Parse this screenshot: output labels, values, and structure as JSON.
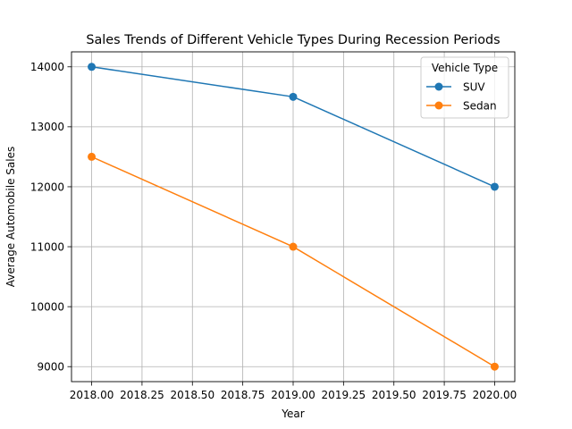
{
  "chart_data": {
    "type": "line",
    "title": "Sales Trends of Different Vehicle Types During Recession Periods",
    "xlabel": "Year",
    "ylabel": "Average Automobile Sales",
    "x": [
      2018,
      2019,
      2020
    ],
    "xlim": [
      2017.9,
      2020.1
    ],
    "ylim": [
      8750,
      14250
    ],
    "grid": true,
    "xticks": [
      2018.0,
      2018.25,
      2018.5,
      2018.75,
      2019.0,
      2019.25,
      2019.5,
      2019.75,
      2020.0
    ],
    "xtick_labels": [
      "2018.00",
      "2018.25",
      "2018.50",
      "2018.75",
      "2019.00",
      "2019.25",
      "2019.50",
      "2019.75",
      "2020.00"
    ],
    "yticks": [
      9000,
      10000,
      11000,
      12000,
      13000,
      14000
    ],
    "ytick_labels": [
      "9000",
      "10000",
      "11000",
      "12000",
      "13000",
      "14000"
    ],
    "legend": {
      "title": "Vehicle Type",
      "position": "top-right"
    },
    "series": [
      {
        "name": "SUV",
        "values": [
          14000,
          13500,
          12000
        ],
        "color": "#1f77b4",
        "marker": "circle"
      },
      {
        "name": "Sedan",
        "values": [
          12500,
          11000,
          9000
        ],
        "color": "#ff7f0e",
        "marker": "circle"
      }
    ]
  }
}
